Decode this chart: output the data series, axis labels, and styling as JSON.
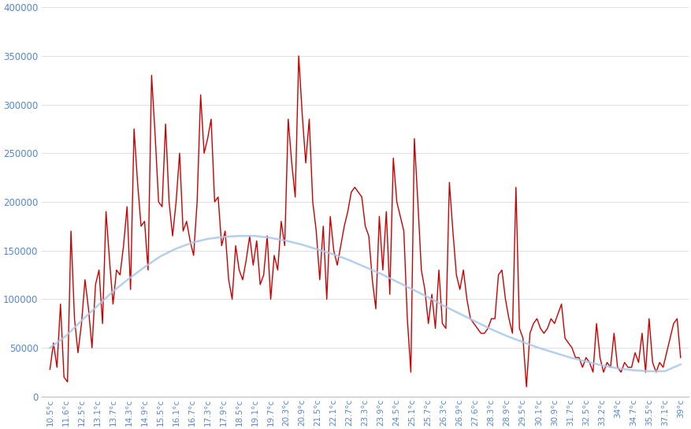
{
  "x_labels": [
    "10.5°c",
    "11.6°c",
    "12.5°c",
    "13.1°c",
    "13.7°c",
    "14.3°c",
    "14.9°c",
    "15.5°c",
    "16.1°c",
    "16.7°c",
    "17.3°c",
    "17.9°c",
    "18.5°c",
    "19.1°c",
    "19.7°c",
    "20.3°c",
    "20.9°c",
    "21.5°c",
    "22.1°c",
    "22.7°c",
    "23.3°c",
    "23.9°c",
    "24.5°c",
    "25.1°c",
    "25.7°c",
    "26.3°c",
    "26.9°c",
    "27.6°c",
    "28.3°c",
    "28.9°c",
    "29.5°c",
    "30.1°c",
    "30.9°c",
    "31.7°c",
    "32.5°c",
    "33.2°c",
    "34°c",
    "34.7°c",
    "35.5°c",
    "37.1°c",
    "39°c"
  ],
  "smooth_values": [
    50000,
    62000,
    78000,
    93000,
    108000,
    121000,
    133000,
    144000,
    152000,
    158000,
    162000,
    164000,
    165000,
    165000,
    163000,
    160000,
    156000,
    151000,
    146000,
    140000,
    133000,
    126000,
    118000,
    110000,
    102000,
    93000,
    85000,
    77000,
    69000,
    62000,
    56000,
    50000,
    45000,
    40000,
    36000,
    32000,
    29000,
    27000,
    26000,
    26000,
    33000
  ],
  "red_dense": [
    28000,
    55000,
    30000,
    95000,
    20000,
    15000,
    170000,
    80000,
    45000,
    75000,
    120000,
    90000,
    50000,
    115000,
    130000,
    75000,
    190000,
    140000,
    95000,
    130000,
    125000,
    155000,
    195000,
    110000,
    275000,
    220000,
    175000,
    180000,
    130000,
    330000,
    270000,
    200000,
    195000,
    280000,
    200000,
    165000,
    200000,
    250000,
    170000,
    180000,
    160000,
    145000,
    200000,
    310000,
    250000,
    265000,
    285000,
    200000,
    205000,
    155000,
    170000,
    120000,
    100000,
    155000,
    130000,
    120000,
    140000,
    165000,
    135000,
    160000,
    115000,
    125000,
    165000,
    100000,
    145000,
    130000,
    180000,
    155000,
    285000,
    240000,
    205000,
    350000,
    290000,
    240000,
    285000,
    200000,
    170000,
    120000,
    175000,
    100000,
    185000,
    150000,
    135000,
    155000,
    175000,
    190000,
    210000,
    215000,
    210000,
    205000,
    175000,
    165000,
    120000,
    90000,
    185000,
    130000,
    190000,
    105000,
    245000,
    200000,
    185000,
    170000,
    80000,
    25000,
    265000,
    200000,
    130000,
    110000,
    75000,
    105000,
    70000,
    130000,
    75000,
    70000,
    220000,
    170000,
    125000,
    110000,
    130000,
    100000,
    80000,
    75000,
    70000,
    65000,
    65000,
    70000,
    80000,
    80000,
    125000,
    130000,
    100000,
    80000,
    65000,
    215000,
    70000,
    60000,
    10000,
    65000,
    75000,
    80000,
    70000,
    65000,
    70000,
    80000,
    75000,
    85000,
    95000,
    60000,
    55000,
    50000,
    40000,
    40000,
    30000,
    40000,
    35000,
    25000,
    75000,
    40000,
    25000,
    35000,
    30000,
    65000,
    30000,
    25000,
    35000,
    30000,
    30000,
    45000,
    35000,
    65000,
    25000,
    80000,
    35000,
    25000,
    35000,
    30000,
    45000,
    60000,
    75000,
    80000,
    40000
  ],
  "background_color": "#ffffff",
  "red_color": "#cc0000",
  "smooth_color": "#a8c8e8",
  "ylim": [
    0,
    400000
  ],
  "yticks": [
    0,
    50000,
    100000,
    150000,
    200000,
    250000,
    300000,
    350000,
    400000
  ],
  "ytick_labels": [
    "0",
    "50000",
    "100000",
    "150000",
    "200000",
    "250000",
    "300000",
    "350000",
    "400000"
  ]
}
